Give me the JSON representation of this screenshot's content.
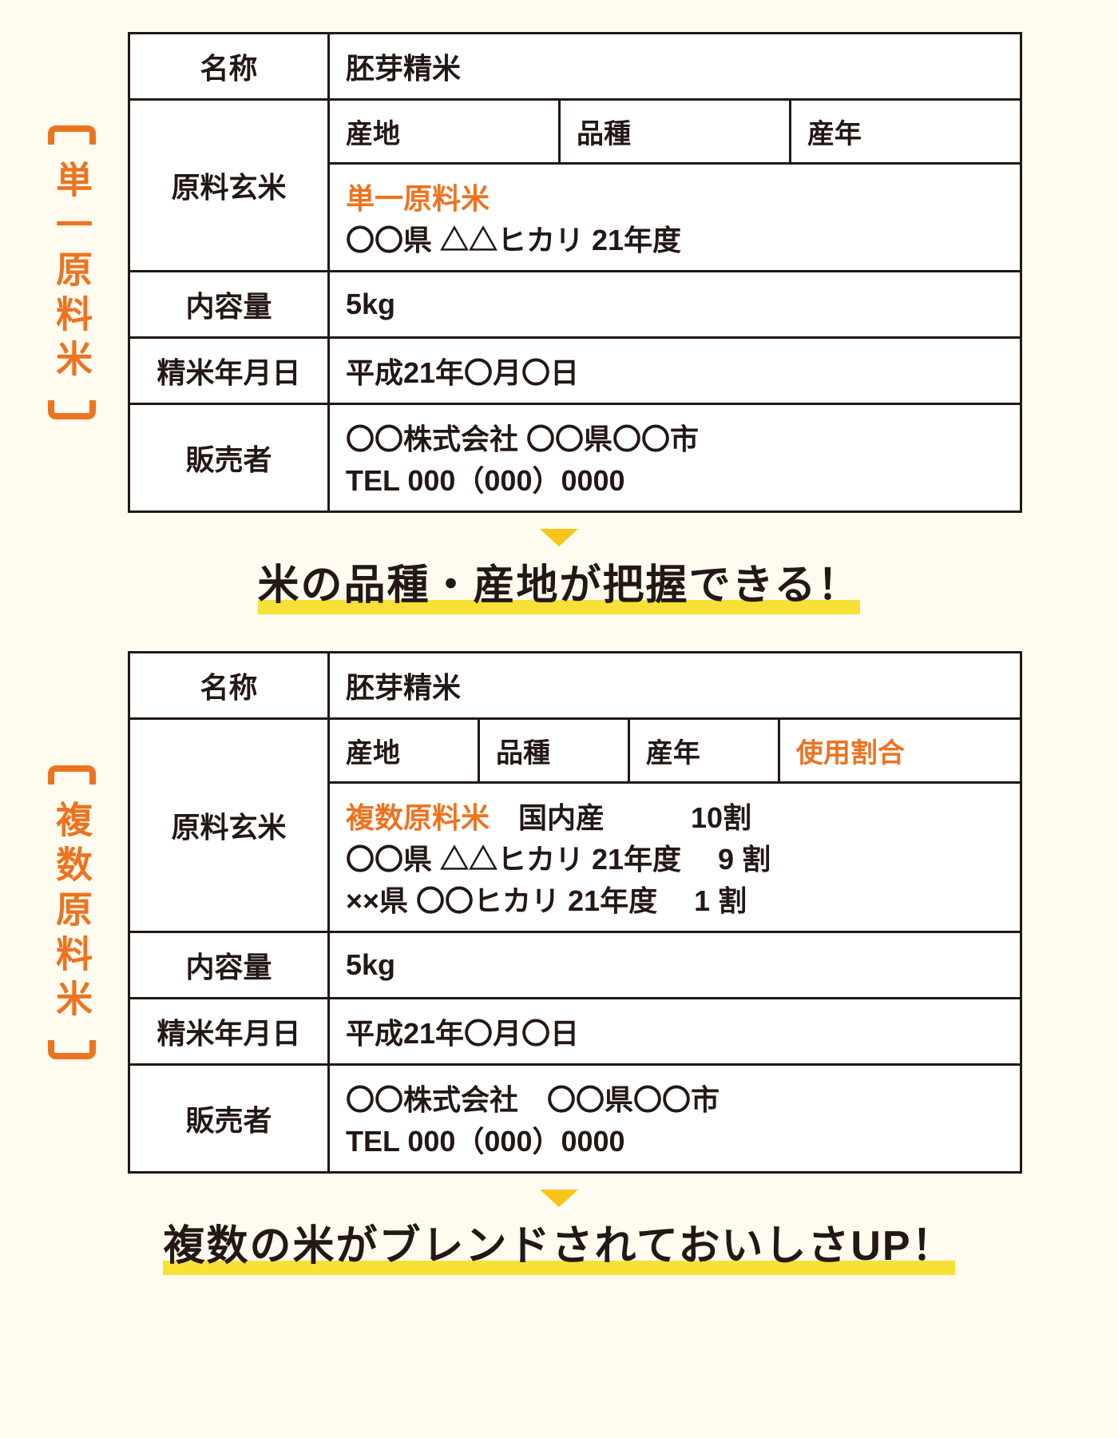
{
  "colors": {
    "background": "#fffbef",
    "table_bg": "#ffffff",
    "border": "#231815",
    "text": "#231815",
    "accent_orange": "#ed7320",
    "highlight_yellow": "#f7e134",
    "arrow_yellow": "#f7c417"
  },
  "typography": {
    "body_fontsize": 36,
    "label_fontsize": 46,
    "tagline_fontsize": 52,
    "weight_heavy": 900,
    "weight_bold": 700
  },
  "section1": {
    "bracket_label": "単一原料米",
    "table": {
      "rows": {
        "name_label": "名称",
        "name_value": "胚芽精米",
        "raw_label": "原料玄米",
        "sub_headers": [
          "産地",
          "品種",
          "産年"
        ],
        "raw_highlight": "単一原料米",
        "raw_detail": "〇〇県 △△ヒカリ 21年度",
        "qty_label": "内容量",
        "qty_value": "5kg",
        "date_label": "精米年月日",
        "date_value": "平成21年〇月〇日",
        "seller_label": "販売者",
        "seller_line1": "〇〇株式会社 〇〇県〇〇市",
        "seller_line2": "TEL 000（000）0000"
      }
    },
    "tagline": "米の品種・産地が把握できる！"
  },
  "section2": {
    "bracket_label": "複数原料米",
    "table": {
      "rows": {
        "name_label": "名称",
        "name_value": "胚芽精米",
        "raw_label": "原料玄米",
        "sub_headers": [
          "産地",
          "品種",
          "産年"
        ],
        "sub_header_extra": "使用割合",
        "raw_highlight": "複数原料米",
        "raw_line1_rest": "　国内産　　　10割",
        "raw_line2": "〇〇県 △△ヒカリ 21年度　 9 割",
        "raw_line3": "××県 〇〇ヒカリ 21年度　 1 割",
        "qty_label": "内容量",
        "qty_value": "5kg",
        "date_label": "精米年月日",
        "date_value": "平成21年〇月〇日",
        "seller_label": "販売者",
        "seller_line1": "〇〇株式会社　〇〇県〇〇市",
        "seller_line2": "TEL 000（000）0000"
      }
    },
    "tagline": "複数の米がブレンドされておいしさUP！"
  }
}
